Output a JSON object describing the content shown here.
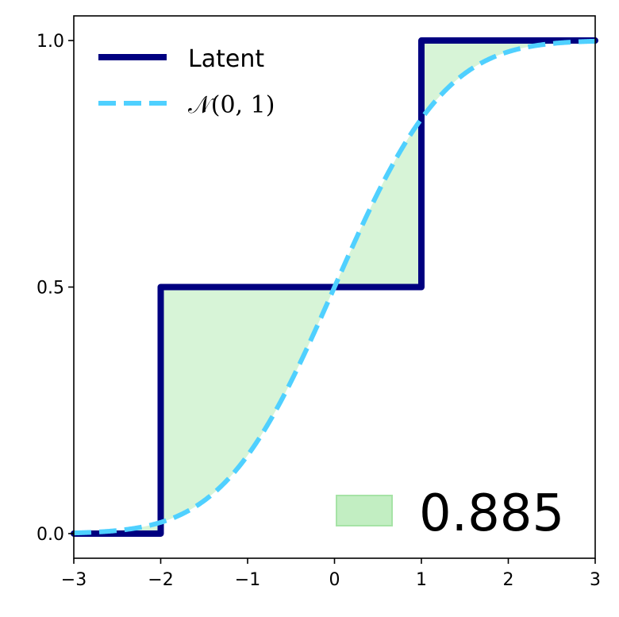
{
  "chart_data": {
    "type": "line",
    "title": "",
    "xlabel": "",
    "ylabel": "",
    "xlim": [
      -3,
      3
    ],
    "ylim": [
      -0.05,
      1.05
    ],
    "x_ticks": [
      -3,
      -2,
      -1,
      0,
      1,
      2,
      3
    ],
    "x_tick_labels": [
      "−3",
      "−2",
      "−1",
      "0",
      "1",
      "2",
      "3"
    ],
    "y_ticks": [
      0.0,
      0.5,
      1.0
    ],
    "y_tick_labels": [
      "0.0",
      "0.5",
      "1.0"
    ],
    "grid": false,
    "legend_position": "top-left",
    "series": [
      {
        "name": "Latent",
        "style": "step",
        "color": "#000080",
        "x": [
          -3,
          -2,
          -2,
          1,
          1,
          3
        ],
        "y": [
          0,
          0,
          0.5,
          0.5,
          1,
          1
        ]
      },
      {
        "name": "𝒩(0, 1)",
        "style": "dashed",
        "color": "#4fd0ff",
        "function": "normal_cdf",
        "mean": 0,
        "std": 1
      }
    ],
    "shaded_area": {
      "between": [
        "Latent",
        "𝒩(0, 1)"
      ],
      "color": "#c2eec2",
      "legend_value": "0.885",
      "legend_position": "bottom-right"
    }
  }
}
